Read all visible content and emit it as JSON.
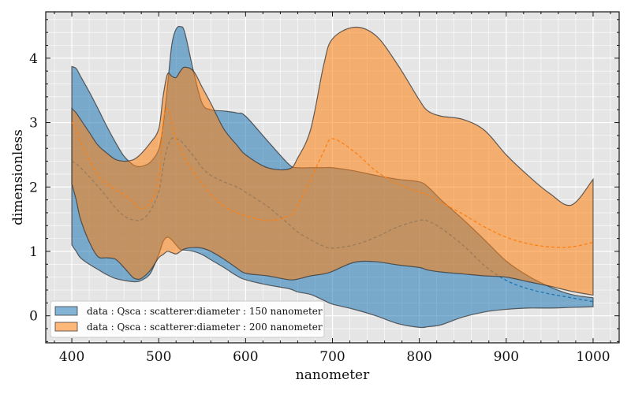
{
  "chart_data": {
    "type": "area",
    "xlabel": "nanometer",
    "ylabel": "dimensionless",
    "xlim": [
      370,
      1030
    ],
    "ylim": [
      -0.42,
      4.72
    ],
    "xticks": [
      400,
      500,
      600,
      700,
      800,
      900,
      1000
    ],
    "xtick_labels": [
      "400",
      "500",
      "600",
      "700",
      "800",
      "900",
      "1000"
    ],
    "yticks": [
      0,
      1,
      2,
      3,
      4
    ],
    "ytick_labels": [
      "0",
      "1",
      "2",
      "3",
      "4"
    ],
    "grid": true,
    "background": "#e5e5e5",
    "legend_position": "lower-left",
    "x": [
      400,
      405,
      410,
      420,
      430,
      440,
      450,
      460,
      470,
      475,
      480,
      490,
      500,
      505,
      510,
      515,
      520,
      525,
      530,
      540,
      550,
      560,
      575,
      590,
      600,
      625,
      650,
      660,
      675,
      690,
      700,
      725,
      750,
      775,
      800,
      810,
      825,
      850,
      875,
      900,
      925,
      950,
      975,
      1000
    ],
    "series": [
      {
        "name": "data : Qsca : scatterer:diameter : 150 nanometer",
        "color": "#1f77b4",
        "upper": [
          3.87,
          3.84,
          3.72,
          3.48,
          3.22,
          2.95,
          2.7,
          2.48,
          2.35,
          2.32,
          2.32,
          2.38,
          2.58,
          2.95,
          3.55,
          4.2,
          4.45,
          4.49,
          4.4,
          3.8,
          3.3,
          3.2,
          3.18,
          3.15,
          3.1,
          2.72,
          2.35,
          2.3,
          2.3,
          2.3,
          2.3,
          2.25,
          2.18,
          2.12,
          2.08,
          2.0,
          1.8,
          1.5,
          1.18,
          0.85,
          0.62,
          0.45,
          0.33,
          0.28
        ],
        "mean": [
          2.4,
          2.36,
          2.3,
          2.16,
          2.01,
          1.85,
          1.68,
          1.55,
          1.49,
          1.48,
          1.49,
          1.62,
          1.92,
          2.3,
          2.62,
          2.75,
          2.75,
          2.72,
          2.65,
          2.48,
          2.3,
          2.18,
          2.08,
          2.0,
          1.92,
          1.7,
          1.42,
          1.3,
          1.18,
          1.08,
          1.05,
          1.1,
          1.22,
          1.38,
          1.48,
          1.47,
          1.36,
          1.1,
          0.78,
          0.55,
          0.42,
          0.34,
          0.28,
          0.22
        ],
        "lower": [
          1.1,
          1.0,
          0.9,
          0.8,
          0.72,
          0.64,
          0.58,
          0.55,
          0.53,
          0.53,
          0.55,
          0.65,
          0.95,
          1.15,
          1.22,
          1.18,
          1.1,
          1.03,
          1.02,
          1.0,
          0.95,
          0.87,
          0.75,
          0.62,
          0.56,
          0.48,
          0.42,
          0.37,
          0.33,
          0.24,
          0.18,
          0.1,
          0.0,
          -0.12,
          -0.18,
          -0.17,
          -0.14,
          -0.02,
          0.06,
          0.1,
          0.12,
          0.12,
          0.13,
          0.14
        ]
      },
      {
        "name": "data : Qsca : scatterer:diameter : 200 nanometer",
        "color": "#ff7f0e",
        "upper": [
          3.22,
          3.15,
          3.05,
          2.85,
          2.65,
          2.53,
          2.43,
          2.4,
          2.42,
          2.46,
          2.52,
          2.68,
          2.9,
          3.4,
          3.75,
          3.72,
          3.7,
          3.8,
          3.86,
          3.8,
          3.55,
          3.3,
          2.9,
          2.65,
          2.5,
          2.3,
          2.28,
          2.45,
          2.9,
          3.9,
          4.3,
          4.48,
          4.35,
          3.9,
          3.35,
          3.18,
          3.1,
          3.05,
          2.88,
          2.5,
          2.18,
          1.9,
          1.72,
          2.12
        ],
        "mean": [
          3.0,
          2.9,
          2.7,
          2.42,
          2.18,
          2.05,
          1.96,
          1.88,
          1.78,
          1.7,
          1.66,
          1.75,
          2.1,
          3.0,
          3.22,
          3.0,
          2.75,
          2.6,
          2.45,
          2.24,
          2.05,
          1.88,
          1.7,
          1.6,
          1.55,
          1.48,
          1.55,
          1.72,
          2.12,
          2.55,
          2.75,
          2.55,
          2.25,
          2.05,
          1.92,
          1.88,
          1.76,
          1.58,
          1.38,
          1.22,
          1.12,
          1.07,
          1.07,
          1.14
        ],
        "lower": [
          2.05,
          1.8,
          1.5,
          1.15,
          0.92,
          0.9,
          0.88,
          0.75,
          0.6,
          0.57,
          0.58,
          0.7,
          0.9,
          0.95,
          1.0,
          0.98,
          0.96,
          1.0,
          1.04,
          1.06,
          1.05,
          1.0,
          0.88,
          0.74,
          0.66,
          0.62,
          0.56,
          0.57,
          0.62,
          0.65,
          0.69,
          0.83,
          0.84,
          0.79,
          0.75,
          0.71,
          0.68,
          0.65,
          0.62,
          0.6,
          0.53,
          0.46,
          0.38,
          0.32
        ]
      }
    ]
  }
}
